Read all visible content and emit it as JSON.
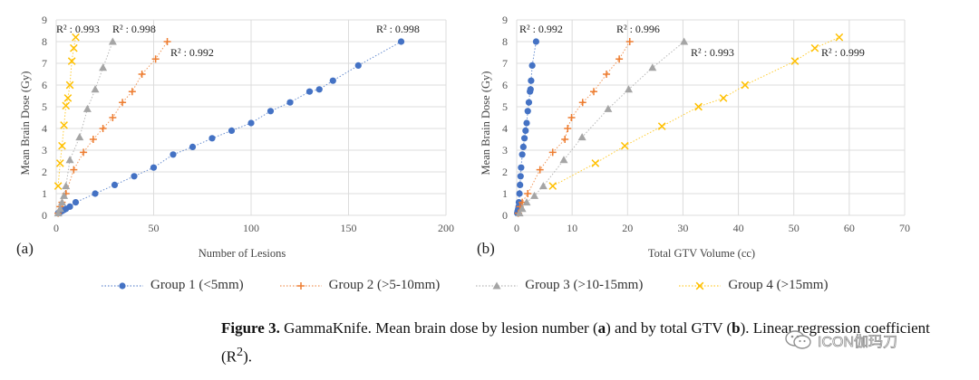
{
  "chart_data": [
    {
      "type": "scatter",
      "panel_label": "(a)",
      "xlabel": "Number of Lesions",
      "ylabel": "Mean Brain Dose (Gy)",
      "xlim": [
        0,
        200
      ],
      "ylim": [
        0,
        9
      ],
      "xticks": [
        "0",
        "50",
        "100",
        "150",
        "200"
      ],
      "yticks": [
        "0",
        "1",
        "2",
        "3",
        "4",
        "5",
        "6",
        "7",
        "8",
        "9"
      ],
      "grid": true,
      "series": [
        {
          "name": "Group 1 (<5mm)",
          "marker": "circle",
          "color": "#4472c4",
          "x": [
            1,
            2,
            3,
            4,
            5,
            7,
            10,
            20,
            30,
            40,
            50,
            60,
            70,
            80,
            90,
            100,
            110,
            120,
            130,
            135,
            142,
            155,
            177
          ],
          "y": [
            0.1,
            0.15,
            0.2,
            0.25,
            0.3,
            0.4,
            0.6,
            1.0,
            1.4,
            1.8,
            2.2,
            2.8,
            3.15,
            3.55,
            3.9,
            4.25,
            4.8,
            5.2,
            5.7,
            5.8,
            6.2,
            6.9,
            8.0
          ],
          "r2_label": "R² : 0.998"
        },
        {
          "name": "Group 2 (>5-10mm)",
          "marker": "plus",
          "color": "#ed7d31",
          "x": [
            1,
            2,
            3,
            5,
            9,
            14,
            19,
            24,
            29,
            34,
            39,
            44,
            51,
            57
          ],
          "y": [
            0.1,
            0.4,
            0.6,
            1.0,
            2.1,
            2.9,
            3.5,
            4.0,
            4.5,
            5.2,
            5.7,
            6.5,
            7.2,
            8.0
          ],
          "r2_label": "R² : 0.992"
        },
        {
          "name": "Group 3 (>10-15mm)",
          "marker": "triangle",
          "color": "#a5a5a5",
          "x": [
            1,
            2,
            3,
            4,
            5,
            7,
            12,
            16,
            20,
            24,
            29
          ],
          "y": [
            0.1,
            0.3,
            0.6,
            0.9,
            1.35,
            2.55,
            3.6,
            4.9,
            5.8,
            6.8,
            8.0
          ],
          "r2_label": "R² : 0.998"
        },
        {
          "name": "Group 4 (>15mm)",
          "marker": "x",
          "color": "#ffc000",
          "x": [
            1,
            2,
            3,
            4,
            5,
            6,
            7,
            8,
            9,
            10
          ],
          "y": [
            1.35,
            2.4,
            3.2,
            4.15,
            5.05,
            5.4,
            6.0,
            7.1,
            7.7,
            8.2
          ],
          "r2_label": "R² : 0.993"
        }
      ]
    },
    {
      "type": "scatter",
      "panel_label": "(b)",
      "xlabel": "Total GTV Volume (cc)",
      "ylabel": "Mean Brain Dose (Gy)",
      "xlim": [
        0,
        70
      ],
      "ylim": [
        0,
        9
      ],
      "xticks": [
        "0",
        "10",
        "20",
        "30",
        "40",
        "50",
        "60",
        "70"
      ],
      "yticks": [
        "0",
        "1",
        "2",
        "3",
        "4",
        "5",
        "6",
        "7",
        "8",
        "9"
      ],
      "grid": true,
      "series": [
        {
          "name": "Group 1 (<5mm)",
          "marker": "circle",
          "color": "#4472c4",
          "x": [
            0.1,
            0.15,
            0.2,
            0.25,
            0.3,
            0.35,
            0.4,
            0.5,
            0.6,
            0.7,
            0.8,
            1.0,
            1.2,
            1.4,
            1.6,
            1.8,
            2.0,
            2.2,
            2.4,
            2.5,
            2.6,
            2.8,
            3.5
          ],
          "y": [
            0.1,
            0.15,
            0.2,
            0.25,
            0.3,
            0.4,
            0.6,
            1.0,
            1.4,
            1.8,
            2.2,
            2.8,
            3.15,
            3.55,
            3.9,
            4.25,
            4.8,
            5.2,
            5.7,
            5.8,
            6.2,
            6.9,
            8.0
          ],
          "r2_label": "R² : 0.992"
        },
        {
          "name": "Group 2 (>5-10mm)",
          "marker": "plus",
          "color": "#ed7d31",
          "x": [
            0.3,
            0.6,
            1.0,
            2.0,
            4.2,
            6.5,
            8.7,
            9.2,
            9.9,
            11.9,
            13.9,
            16.2,
            18.5,
            20.4
          ],
          "y": [
            0.1,
            0.4,
            0.6,
            1.0,
            2.1,
            2.9,
            3.5,
            4.0,
            4.5,
            5.2,
            5.7,
            6.5,
            7.2,
            8.0
          ],
          "r2_label": "R² : 0.996"
        },
        {
          "name": "Group 3 (>10-15mm)",
          "marker": "triangle",
          "color": "#a5a5a5",
          "x": [
            0.5,
            1.0,
            1.8,
            3.2,
            4.8,
            8.5,
            11.8,
            16.5,
            20.2,
            24.5,
            30.2
          ],
          "y": [
            0.1,
            0.3,
            0.6,
            0.9,
            1.35,
            2.55,
            3.6,
            4.9,
            5.8,
            6.8,
            8.0
          ],
          "r2_label": "R² : 0.993"
        },
        {
          "name": "Group 4 (>15mm)",
          "marker": "x",
          "color": "#ffc000",
          "x": [
            6.5,
            14.2,
            19.5,
            26.2,
            32.8,
            37.3,
            41.2,
            50.2,
            53.8,
            58.2
          ],
          "y": [
            1.35,
            2.4,
            3.2,
            4.1,
            5.0,
            5.4,
            6.0,
            7.1,
            7.7,
            8.2
          ],
          "r2_label": "R² : 0.999"
        }
      ]
    }
  ],
  "legend": {
    "items": [
      {
        "label": "Group 1 (<5mm)",
        "marker": "circle",
        "color": "#4472c4"
      },
      {
        "label": "Group 2 (>5-10mm)",
        "marker": "plus",
        "color": "#ed7d31"
      },
      {
        "label": "Group 3 (>10-15mm)",
        "marker": "triangle",
        "color": "#a5a5a5"
      },
      {
        "label": "Group 4 (>15mm)",
        "marker": "x",
        "color": "#ffc000"
      }
    ]
  },
  "caption": {
    "figure_label": "Figure 3.",
    "text_1": " GammaKnife. Mean brain dose by lesion number (",
    "a": "a",
    "text_2": ") and by total GTV (",
    "b": "b",
    "text_3": "). Linear regression coefficient (R",
    "sup": "2",
    "text_4": ")."
  },
  "watermark": {
    "icon": "wechat-icon",
    "text": "ICON伽玛刀"
  }
}
